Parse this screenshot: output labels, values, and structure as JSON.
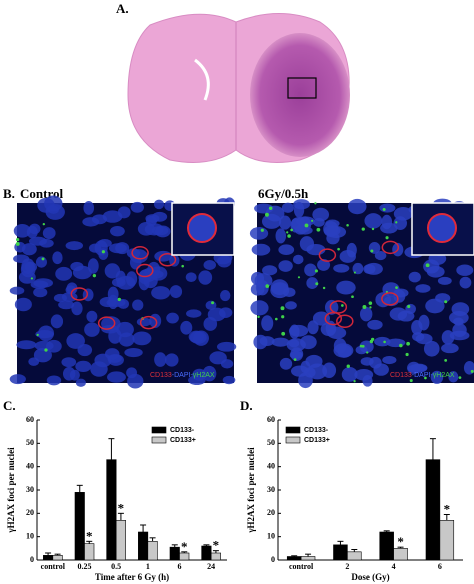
{
  "panel_labels": [
    "A.",
    "B.",
    "C.",
    "D."
  ],
  "images": [
    {
      "title": "Control",
      "stain": [
        "CD133",
        "-DAPI-",
        "γH2AX"
      ]
    },
    {
      "title": "6Gy/0.5h",
      "stain": [
        "CD133",
        "-DAPI-",
        "γH2AX"
      ]
    }
  ],
  "chart_data": [
    {
      "type": "bar",
      "xlabel": "Time after 6 Gy (h)",
      "ylabel": "γH2AX foci per nuclei",
      "categories": [
        "control",
        "0.25",
        "0.5",
        "1",
        "6",
        "24"
      ],
      "ylim": [
        0,
        60
      ],
      "yticks": [
        0,
        10,
        20,
        30,
        40,
        50,
        60
      ],
      "series": [
        {
          "name": "CD133-",
          "color": "#000000",
          "values": [
            2,
            29,
            43,
            12,
            5.5,
            6
          ],
          "errors": [
            1,
            3,
            9,
            3,
            1,
            0.5
          ]
        },
        {
          "name": "CD133+",
          "color": "#c8c8c8",
          "values": [
            2,
            7,
            17,
            8,
            3,
            3
          ],
          "errors": [
            0.5,
            1,
            3,
            1.5,
            0.5,
            1
          ],
          "markers": [
            null,
            "*",
            "*",
            null,
            "*",
            "*"
          ]
        }
      ]
    },
    {
      "type": "bar",
      "xlabel": "Dose (Gy)",
      "ylabel": "γH2AX foci per nuclei",
      "categories": [
        "control",
        "2",
        "4",
        "6"
      ],
      "ylim": [
        0,
        60
      ],
      "yticks": [
        0,
        10,
        20,
        30,
        40,
        50,
        60
      ],
      "series": [
        {
          "name": "CD133-",
          "color": "#000000",
          "values": [
            1.5,
            6.5,
            12,
            43
          ],
          "errors": [
            0.3,
            1.5,
            0.5,
            9
          ]
        },
        {
          "name": "CD133+",
          "color": "#c8c8c8",
          "values": [
            1.5,
            3.5,
            5,
            17
          ],
          "errors": [
            1,
            1,
            0.5,
            2.5
          ],
          "markers": [
            null,
            null,
            "*",
            "*"
          ]
        }
      ]
    }
  ]
}
